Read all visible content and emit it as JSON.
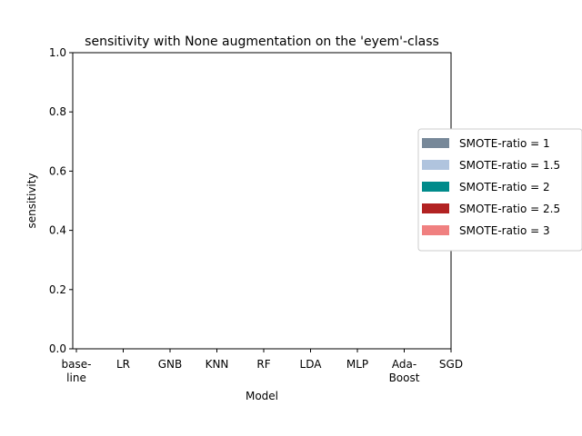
{
  "chart_data": {
    "type": "bar",
    "title": "sensitivity with None augmentation on the 'eyem'-class",
    "xlabel": "Model",
    "ylabel": "sensitivity",
    "ylim": [
      0,
      1.0
    ],
    "yticks": [
      "0.0",
      "0.2",
      "0.4",
      "0.6",
      "0.8",
      "1.0"
    ],
    "categories": [
      "base-\nline",
      "LR",
      "GNB",
      "KNN",
      "RF",
      "LDA",
      "MLP",
      "Ada-\nBoost",
      "SGD"
    ],
    "series": [
      {
        "name": "SMOTE-ratio = 1",
        "color": "#778899",
        "values": [
          null,
          null,
          null,
          null,
          null,
          null,
          null,
          null,
          null
        ]
      },
      {
        "name": "SMOTE-ratio = 1.5",
        "color": "#b0c4de",
        "values": [
          null,
          null,
          null,
          null,
          null,
          null,
          null,
          null,
          null
        ]
      },
      {
        "name": "SMOTE-ratio = 2",
        "color": "#008b8b",
        "values": [
          null,
          null,
          null,
          null,
          null,
          null,
          null,
          null,
          null
        ]
      },
      {
        "name": "SMOTE-ratio = 2.5",
        "color": "#b22222",
        "values": [
          null,
          null,
          null,
          null,
          null,
          null,
          null,
          null,
          null
        ]
      },
      {
        "name": "SMOTE-ratio = 3",
        "color": "#f08080",
        "values": [
          null,
          null,
          null,
          null,
          null,
          null,
          null,
          null,
          null
        ]
      }
    ],
    "grid": false,
    "legend_position": "right"
  }
}
